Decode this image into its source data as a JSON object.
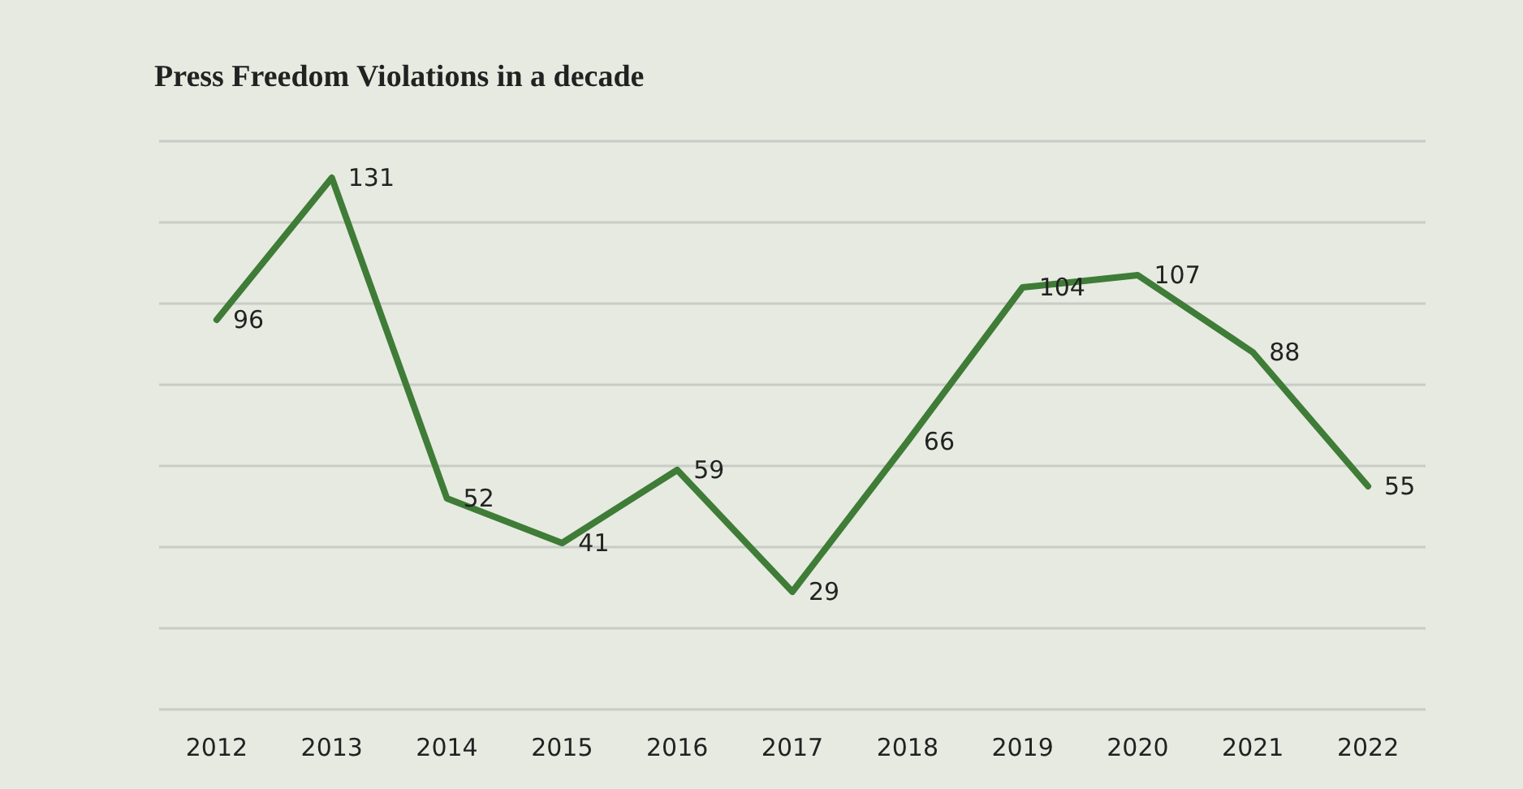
{
  "chart_data": {
    "type": "line",
    "title": "Press Freedom Violations in a decade",
    "categories": [
      "2012",
      "2013",
      "2014",
      "2015",
      "2016",
      "2017",
      "2018",
      "2019",
      "2020",
      "2021",
      "2022"
    ],
    "series": [
      {
        "color": "#3f7c37",
        "values": [
          96,
          131,
          52,
          41,
          59,
          29,
          66,
          104,
          107,
          88,
          55
        ]
      }
    ],
    "ylim": [
      0,
      140
    ],
    "yticks": [
      {
        "value": 0,
        "label": null
      },
      {
        "value": 20,
        "label": null
      },
      {
        "value": 40,
        "label": null
      },
      {
        "value": 60,
        "label": null
      },
      {
        "value": 80,
        "label": null
      },
      {
        "value": 100,
        "label": null
      },
      {
        "value": 120,
        "label": null
      },
      {
        "value": 140,
        "label": null
      }
    ],
    "grid": "y",
    "tick_labels": "x",
    "data_labels": true,
    "marker": "none",
    "line_style": "solid"
  }
}
